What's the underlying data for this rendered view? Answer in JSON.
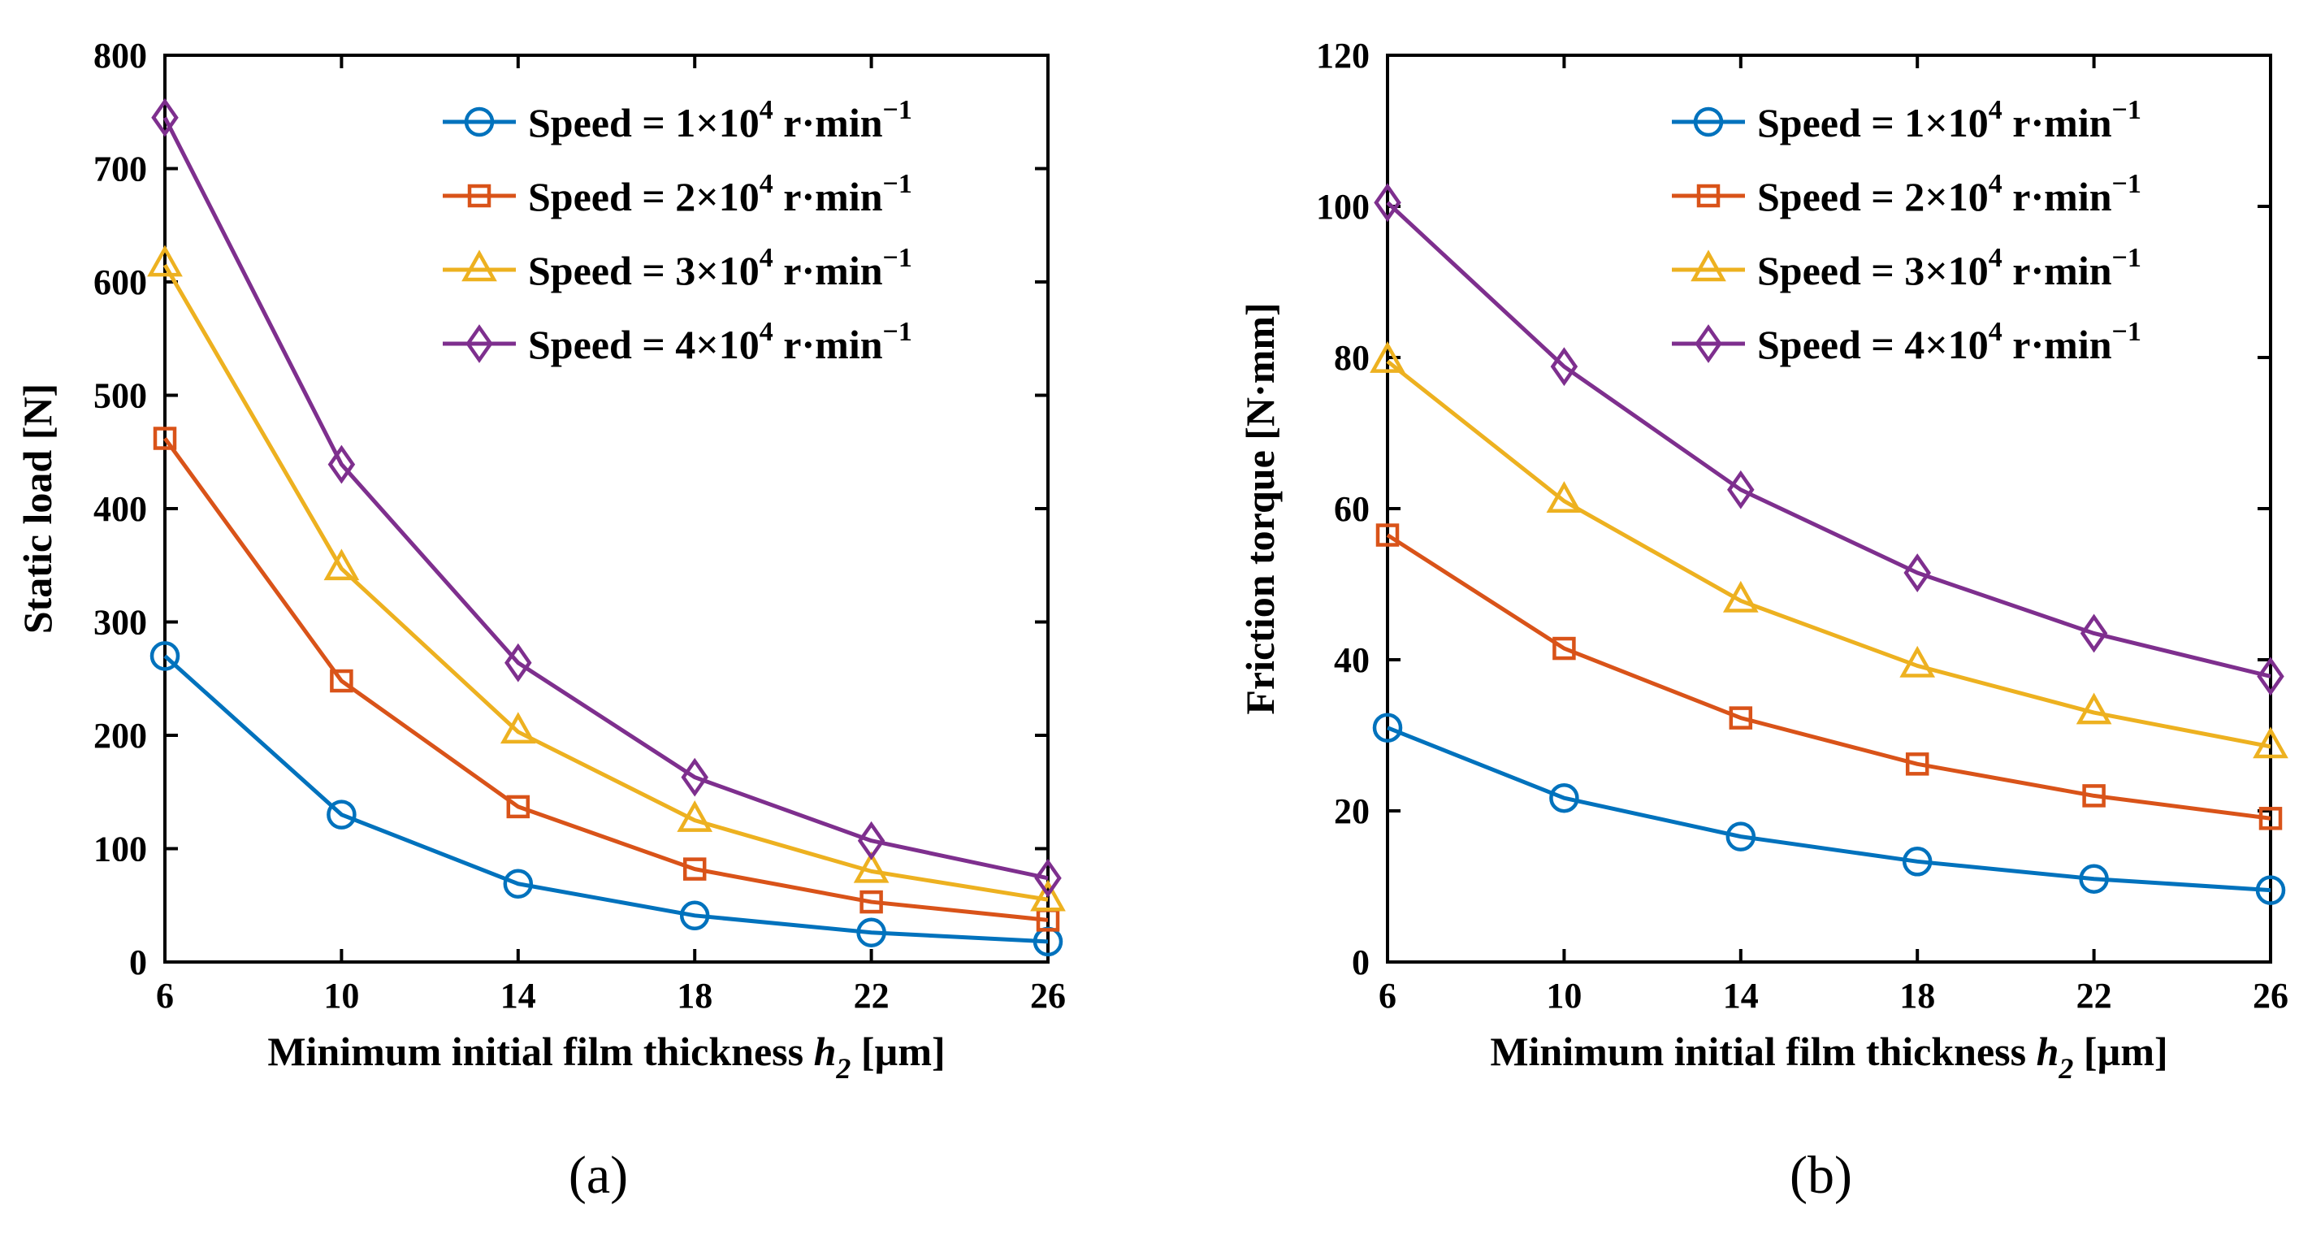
{
  "chart_data": [
    {
      "type": "line",
      "panel": "(a)",
      "title": "",
      "xlabel": "Minimum initial film thickness h",
      "xlabel_subscript": "2",
      "xlabel_unit": " [µm]",
      "ylabel": "Static load [N]",
      "x": [
        6,
        10,
        14,
        18,
        22,
        26
      ],
      "xticks": [
        "6",
        "10",
        "14",
        "18",
        "22",
        "26"
      ],
      "xlim": [
        6,
        26
      ],
      "ylim": [
        0,
        800
      ],
      "yticks": [
        "0",
        "100",
        "200",
        "300",
        "400",
        "500",
        "600",
        "700",
        "800"
      ],
      "legend_location": "top-right",
      "series": [
        {
          "name": "Speed = 1×10",
          "sup": "4",
          "unit": " r·min",
          "unit_sup": "−1",
          "color": "#0072BD",
          "marker": "circle",
          "values": [
            270,
            130,
            69,
            41,
            26,
            18
          ]
        },
        {
          "name": "Speed = 2×10",
          "sup": "4",
          "unit": " r·min",
          "unit_sup": "−1",
          "color": "#D95319",
          "marker": "square",
          "values": [
            462,
            248,
            137,
            82,
            53,
            37
          ]
        },
        {
          "name": "Speed = 3×10",
          "sup": "4",
          "unit": " r·min",
          "unit_sup": "−1",
          "color": "#EDB120",
          "marker": "triangle",
          "values": [
            615,
            347,
            203,
            125,
            80,
            55
          ]
        },
        {
          "name": "Speed = 4×10",
          "sup": "4",
          "unit": " r·min",
          "unit_sup": "−1",
          "color": "#7E2F8E",
          "marker": "diamond",
          "values": [
            745,
            439,
            264,
            163,
            107,
            74
          ]
        }
      ]
    },
    {
      "type": "line",
      "panel": "(b)",
      "title": "",
      "xlabel": "Minimum initial film thickness h",
      "xlabel_subscript": "2",
      "xlabel_unit": " [µm]",
      "ylabel": "Friction torque [N·mm]",
      "x": [
        6,
        10,
        14,
        18,
        22,
        26
      ],
      "xticks": [
        "6",
        "10",
        "14",
        "18",
        "22",
        "26"
      ],
      "xlim": [
        6,
        26
      ],
      "ylim": [
        0,
        120
      ],
      "yticks": [
        "0",
        "20",
        "40",
        "60",
        "80",
        "100",
        "120"
      ],
      "legend_location": "top-right",
      "series": [
        {
          "name": "Speed = 1×10",
          "sup": "4",
          "unit": " r·min",
          "unit_sup": "−1",
          "color": "#0072BD",
          "marker": "circle",
          "values": [
            31.0,
            21.7,
            16.6,
            13.3,
            11.0,
            9.5
          ]
        },
        {
          "name": "Speed = 2×10",
          "sup": "4",
          "unit": " r·min",
          "unit_sup": "−1",
          "color": "#D95319",
          "marker": "square",
          "values": [
            56.5,
            41.5,
            32.3,
            26.2,
            22.0,
            19.0
          ]
        },
        {
          "name": "Speed = 3×10",
          "sup": "4",
          "unit": " r·min",
          "unit_sup": "−1",
          "color": "#EDB120",
          "marker": "triangle",
          "values": [
            79.5,
            61.0,
            47.8,
            39.2,
            33.0,
            28.5
          ]
        },
        {
          "name": "Speed = 4×10",
          "sup": "4",
          "unit": " r·min",
          "unit_sup": "−1",
          "color": "#7E2F8E",
          "marker": "diamond",
          "values": [
            100.5,
            78.8,
            62.5,
            51.5,
            43.5,
            37.8
          ]
        }
      ]
    }
  ]
}
